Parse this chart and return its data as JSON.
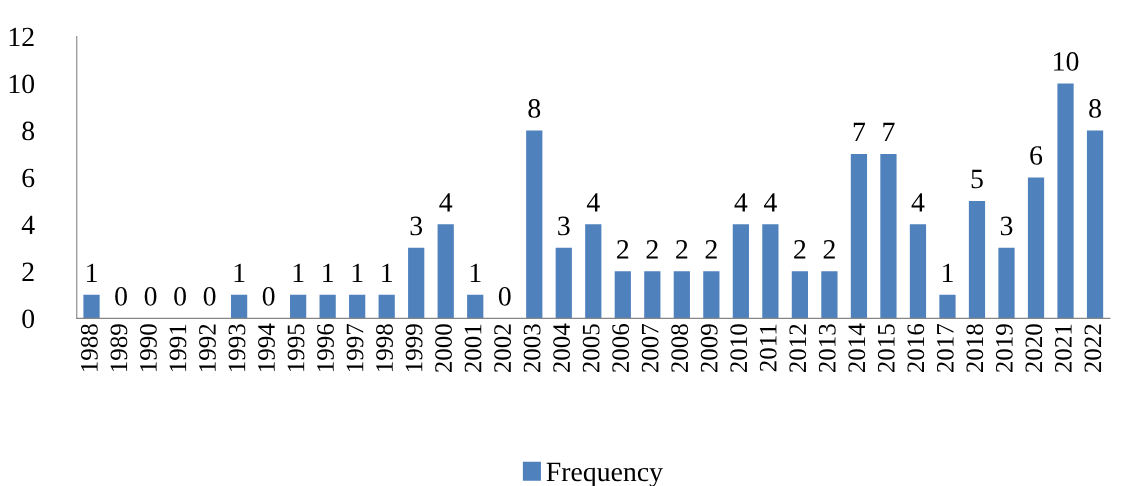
{
  "chart_data": {
    "type": "bar",
    "categories": [
      "1988",
      "1989",
      "1990",
      "1991",
      "1992",
      "1993",
      "1994",
      "1995",
      "1996",
      "1997",
      "1998",
      "1999",
      "2000",
      "2001",
      "2002",
      "2003",
      "2004",
      "2005",
      "2006",
      "2007",
      "2008",
      "2009",
      "2010",
      "2011",
      "2012",
      "2013",
      "2014",
      "2015",
      "2016",
      "2017",
      "2018",
      "2019",
      "2020",
      "2021",
      "2022"
    ],
    "series": [
      {
        "name": "Frequency",
        "color": "#4f81bd",
        "values": [
          1,
          0,
          0,
          0,
          0,
          1,
          0,
          1,
          1,
          1,
          1,
          3,
          4,
          1,
          0,
          8,
          3,
          4,
          2,
          2,
          2,
          2,
          4,
          4,
          2,
          2,
          7,
          7,
          4,
          1,
          5,
          3,
          6,
          10,
          8
        ]
      }
    ],
    "ylim": [
      0,
      12
    ],
    "yticks": [
      0,
      2,
      4,
      6,
      8,
      10,
      12
    ],
    "data_labels": true,
    "legend": "bottom",
    "grid": false
  }
}
